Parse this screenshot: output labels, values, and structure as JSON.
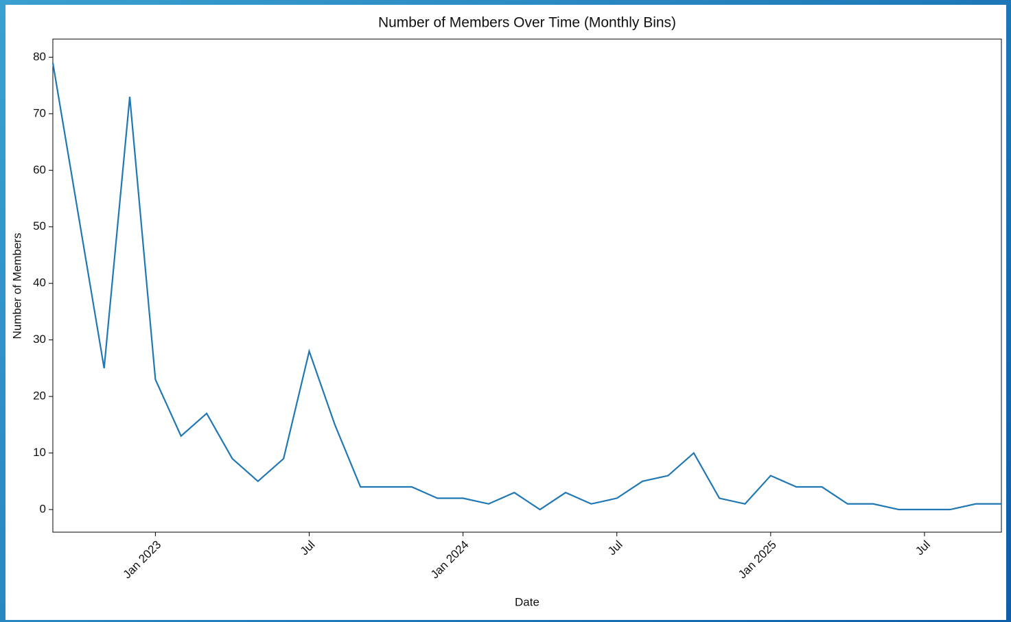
{
  "chart_data": {
    "type": "line",
    "title": "Number of Members Over Time (Monthly Bins)",
    "xlabel": "Date",
    "ylabel": "Number of Members",
    "x": [
      "2022-09",
      "2022-10",
      "2022-11",
      "2022-12",
      "2023-01",
      "2023-02",
      "2023-03",
      "2023-04",
      "2023-05",
      "2023-06",
      "2023-07",
      "2023-08",
      "2023-09",
      "2023-10",
      "2023-11",
      "2023-12",
      "2024-01",
      "2024-02",
      "2024-03",
      "2024-04",
      "2024-05",
      "2024-06",
      "2024-07",
      "2024-08",
      "2024-09",
      "2024-10",
      "2024-11",
      "2024-12",
      "2025-01",
      "2025-02",
      "2025-03",
      "2025-04",
      "2025-05",
      "2025-06",
      "2025-07",
      "2025-08",
      "2025-09",
      "2025-10"
    ],
    "series": [
      {
        "name": "Number of Members",
        "color": "#1f77b4",
        "values": [
          79,
          52,
          25,
          73,
          23,
          13,
          17,
          9,
          5,
          9,
          28,
          15,
          4,
          4,
          4,
          2,
          2,
          1,
          3,
          0,
          3,
          1,
          2,
          5,
          6,
          10,
          2,
          1,
          6,
          4,
          4,
          1,
          1,
          0,
          0,
          0,
          1,
          1
        ]
      }
    ],
    "xlim": [
      "2022-09",
      "2025-10"
    ],
    "xticks": [
      {
        "value": "2023-01",
        "label": "Jan 2023"
      },
      {
        "value": "2023-07",
        "label": "Jul"
      },
      {
        "value": "2024-01",
        "label": "Jan 2024"
      },
      {
        "value": "2024-07",
        "label": "Jul"
      },
      {
        "value": "2025-01",
        "label": "Jan 2025"
      },
      {
        "value": "2025-07",
        "label": "Jul"
      }
    ],
    "ylim": [
      -4,
      83.2
    ],
    "yticks": [
      0,
      10,
      20,
      30,
      40,
      50,
      60,
      70,
      80
    ]
  }
}
